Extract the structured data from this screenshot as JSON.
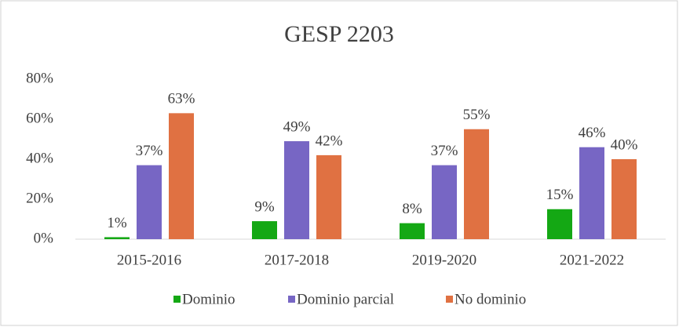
{
  "chart_data": {
    "type": "bar",
    "title": "GESP 2203",
    "categories": [
      "2015-2016",
      "2017-2018",
      "2019-2020",
      "2021-2022"
    ],
    "series": [
      {
        "name": "Dominio",
        "color": "#14a814",
        "values": [
          1,
          9,
          8,
          15
        ],
        "value_labels": [
          "1%",
          "9%",
          "8%",
          "15%"
        ]
      },
      {
        "name": "Dominio parcial",
        "color": "#7766c4",
        "values": [
          37,
          49,
          37,
          46
        ],
        "value_labels": [
          "37%",
          "49%",
          "37%",
          "46%"
        ]
      },
      {
        "name": "No dominio",
        "color": "#e07142",
        "values": [
          63,
          42,
          55,
          40
        ],
        "value_labels": [
          "63%",
          "42%",
          "55%",
          "40%"
        ]
      }
    ],
    "ylim": [
      0,
      80
    ],
    "yticks": [
      {
        "value": 0,
        "label": "0%"
      },
      {
        "value": 20,
        "label": "20%"
      },
      {
        "value": 40,
        "label": "40%"
      },
      {
        "value": 60,
        "label": "60%"
      },
      {
        "value": 80,
        "label": "80%"
      }
    ],
    "grid": false,
    "legend": "bottom"
  }
}
